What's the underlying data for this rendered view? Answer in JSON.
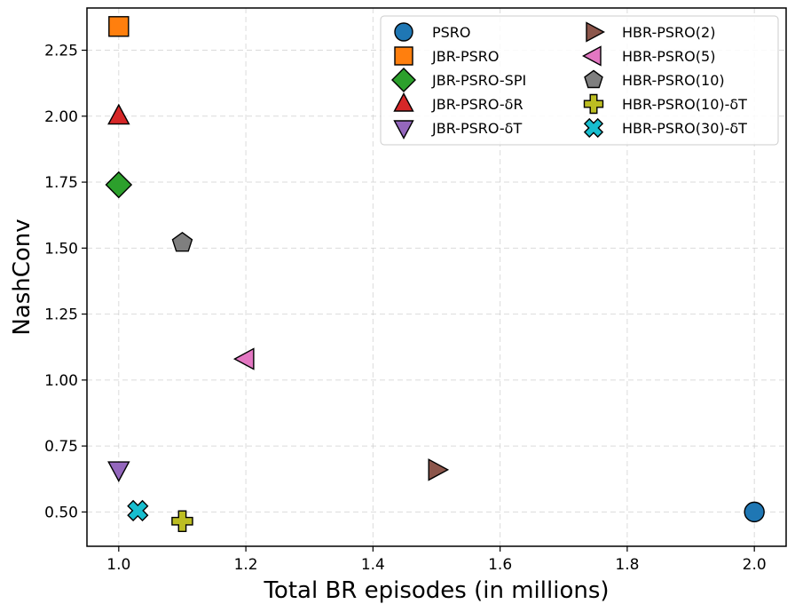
{
  "chart_data": {
    "type": "scatter",
    "title": "",
    "xlabel": "Total BR episodes (in millions)",
    "ylabel": "NashConv",
    "xlim": [
      0.95,
      2.05
    ],
    "ylim": [
      0.37,
      2.41
    ],
    "xticks": [
      1.0,
      1.2,
      1.4,
      1.6,
      1.8,
      2.0
    ],
    "xtick_labels": [
      "1.0",
      "1.2",
      "1.4",
      "1.6",
      "1.8",
      "2.0"
    ],
    "yticks": [
      0.5,
      0.75,
      1.0,
      1.25,
      1.5,
      1.75,
      2.0,
      2.25
    ],
    "ytick_labels": [
      "0.50",
      "0.75",
      "1.00",
      "1.25",
      "1.50",
      "1.75",
      "2.00",
      "2.25"
    ],
    "grid": true,
    "legend_position": "top-right",
    "series": [
      {
        "name": "PSRO",
        "x": 2.0,
        "y": 0.5,
        "marker": "circle",
        "color": "#1f77b4"
      },
      {
        "name": "JBR-PSRO",
        "x": 1.0,
        "y": 2.34,
        "marker": "square",
        "color": "#ff7f0e"
      },
      {
        "name": "JBR-PSRO-SPI",
        "x": 1.0,
        "y": 1.74,
        "marker": "diamond",
        "color": "#2ca02c"
      },
      {
        "name": "JBR-PSRO-δR",
        "x": 1.0,
        "y": 2.0,
        "marker": "triangle-up",
        "color": "#d62728"
      },
      {
        "name": "JBR-PSRO-δT",
        "x": 1.0,
        "y": 0.66,
        "marker": "triangle-down",
        "color": "#9467bd"
      },
      {
        "name": "HBR-PSRO(2)",
        "x": 1.5,
        "y": 0.66,
        "marker": "triangle-right",
        "color": "#8c564b"
      },
      {
        "name": "HBR-PSRO(5)",
        "x": 1.2,
        "y": 1.08,
        "marker": "triangle-left",
        "color": "#e377c2"
      },
      {
        "name": "HBR-PSRO(10)",
        "x": 1.1,
        "y": 1.52,
        "marker": "pentagon",
        "color": "#7f7f7f"
      },
      {
        "name": "HBR-PSRO(10)-δT",
        "x": 1.1,
        "y": 0.465,
        "marker": "plus",
        "color": "#bcbd22"
      },
      {
        "name": "HBR-PSRO(30)-δT",
        "x": 1.03,
        "y": 0.505,
        "marker": "x",
        "color": "#17becf"
      }
    ]
  }
}
